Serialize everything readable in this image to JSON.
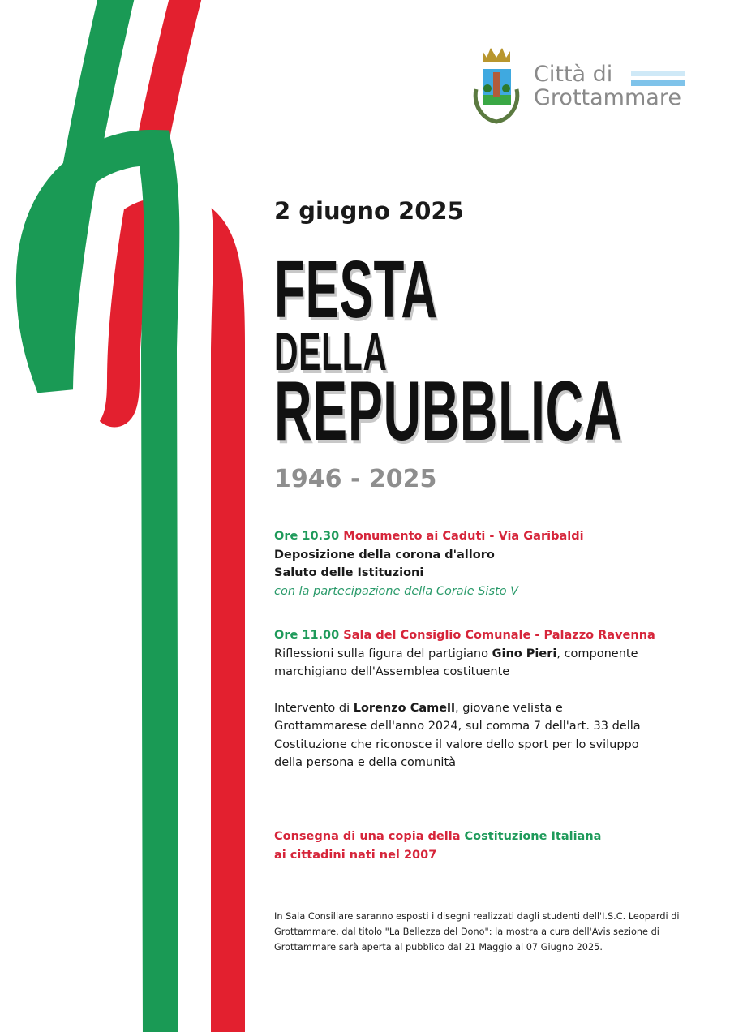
{
  "colors": {
    "green": "#1e9a5a",
    "red": "#d6253a",
    "ribbon_green": "#1a9a55",
    "ribbon_red": "#e3202f"
  },
  "logo": {
    "line1": "Città di",
    "line2": "Grottammare",
    "emblem": "crest-icon"
  },
  "date": "2 giugno 2025",
  "title": {
    "line1": "FESTA",
    "line2": "DELLA",
    "line3": "REPUBBLICA"
  },
  "years": "1946 - 2025",
  "event1": {
    "time": "Ore 10.30",
    "place": "Monumento ai Caduti - Via Garibaldi",
    "line1": "Deposizione della corona d'alloro",
    "line2": "Saluto delle Istituzioni",
    "line3": "con la partecipazione della Corale Sisto V"
  },
  "event2": {
    "time": "Ore 11.00",
    "place": "Sala del Consiglio Comunale - Palazzo Ravenna",
    "p1_a": "Riflessioni sulla figura del partigiano ",
    "p1_b": "Gino Pieri",
    "p1_c": ", componente marchigiano dell'Assemblea costituente",
    "p2_a": "Intervento di ",
    "p2_b": "Lorenzo Camell",
    "p2_c": ", giovane velista e Grottammarese dell'anno 2024, sul comma 7 dell'art. 33 della Costituzione che riconosce il valore dello sport per lo sviluppo della persona e della comunità"
  },
  "delivery": {
    "a": "Consegna di una copia della ",
    "b": "Costituzione Italiana",
    "c": "ai cittadini nati nel 2007"
  },
  "note": "In Sala Consiliare saranno esposti i disegni realizzati dagli studenti dell'I.S.C. Leopardi di Grottammare, dal titolo \"La Bellezza del Dono\": la mostra a cura dell'Avis sezione di Grottammare sarà aperta al pubblico dal 21 Maggio al 07 Giugno 2025."
}
